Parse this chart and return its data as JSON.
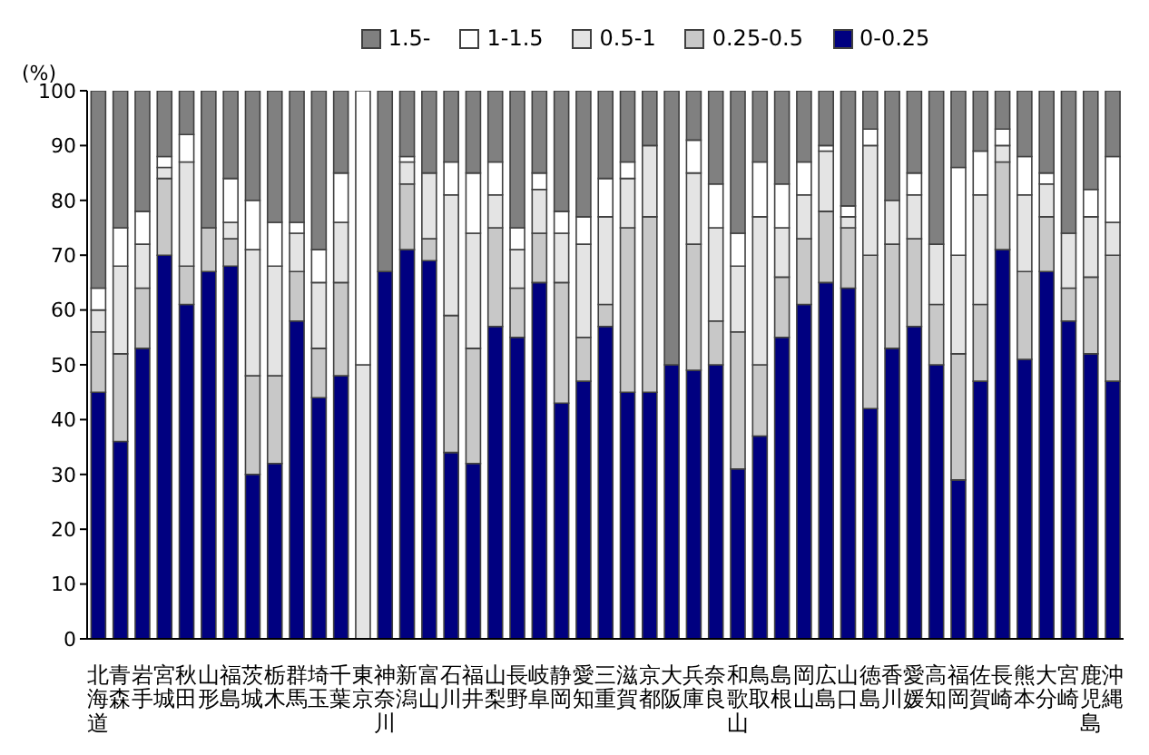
{
  "chart_data": {
    "type": "bar",
    "stacked": true,
    "ylabel": "(%)",
    "categories": [
      "北海道",
      "青森",
      "岩手",
      "宮城",
      "秋田",
      "山形",
      "福島",
      "茨城",
      "栃木",
      "群馬",
      "埼玉",
      "千葉",
      "東京",
      "神奈川",
      "新潟",
      "富山",
      "石川",
      "福井",
      "山梨",
      "長野",
      "岐阜",
      "静岡",
      "愛知",
      "三重",
      "滋賀",
      "京都",
      "大阪",
      "兵庫",
      "奈良",
      "和歌山",
      "鳥取",
      "島根",
      "岡山",
      "広島",
      "山口",
      "徳島",
      "香川",
      "愛媛",
      "高知",
      "福岡",
      "佐賀",
      "長崎",
      "熊本",
      "大分",
      "宮崎",
      "鹿児島",
      "沖縄"
    ],
    "series": [
      {
        "name": "0-0.25",
        "color": "#000080",
        "values": [
          45,
          36,
          53,
          70,
          61,
          67,
          68,
          30,
          32,
          58,
          44,
          48,
          0,
          67,
          71,
          69,
          34,
          32,
          57,
          55,
          65,
          43,
          47,
          57,
          45,
          45,
          50,
          49,
          50,
          31,
          37,
          55,
          61,
          65,
          64,
          42,
          53,
          57,
          50,
          29,
          47,
          71,
          51,
          67,
          58,
          52,
          47
        ]
      },
      {
        "name": "0.25-0.5",
        "color": "#c8c8c8",
        "values": [
          11,
          16,
          11,
          14,
          7,
          8,
          5,
          18,
          16,
          9,
          9,
          17,
          0,
          0,
          12,
          4,
          25,
          21,
          18,
          9,
          9,
          22,
          8,
          4,
          30,
          32,
          0,
          23,
          8,
          25,
          13,
          11,
          12,
          13,
          11,
          28,
          19,
          16,
          11,
          23,
          14,
          16,
          16,
          10,
          6,
          14,
          23
        ]
      },
      {
        "name": "0.5-1",
        "color": "#e4e4e4",
        "values": [
          4,
          16,
          8,
          2,
          19,
          0,
          3,
          23,
          20,
          7,
          12,
          11,
          50,
          0,
          4,
          12,
          22,
          21,
          6,
          7,
          8,
          9,
          17,
          16,
          9,
          13,
          0,
          13,
          17,
          12,
          27,
          9,
          8,
          11,
          2,
          20,
          8,
          8,
          11,
          18,
          20,
          3,
          14,
          6,
          10,
          11,
          6
        ]
      },
      {
        "name": "1-1.5",
        "color": "#ffffff",
        "values": [
          4,
          7,
          6,
          2,
          5,
          0,
          8,
          9,
          8,
          2,
          6,
          9,
          50,
          0,
          1,
          0,
          6,
          11,
          6,
          4,
          3,
          4,
          5,
          7,
          3,
          0,
          0,
          6,
          8,
          6,
          10,
          8,
          6,
          1,
          2,
          3,
          0,
          4,
          0,
          16,
          8,
          3,
          7,
          2,
          0,
          5,
          12
        ]
      },
      {
        "name": "1.5-",
        "color": "#808080",
        "values": [
          36,
          25,
          22,
          12,
          8,
          25,
          16,
          20,
          24,
          24,
          29,
          15,
          0,
          33,
          12,
          15,
          13,
          15,
          13,
          25,
          15,
          22,
          23,
          16,
          13,
          10,
          50,
          9,
          17,
          26,
          13,
          17,
          13,
          10,
          21,
          7,
          20,
          15,
          28,
          14,
          11,
          7,
          12,
          15,
          26,
          18,
          12
        ]
      }
    ],
    "ylim": [
      0,
      100
    ],
    "yticks": [
      0,
      10,
      20,
      30,
      40,
      50,
      60,
      70,
      80,
      90,
      100
    ],
    "grid": false,
    "legend": "top"
  }
}
